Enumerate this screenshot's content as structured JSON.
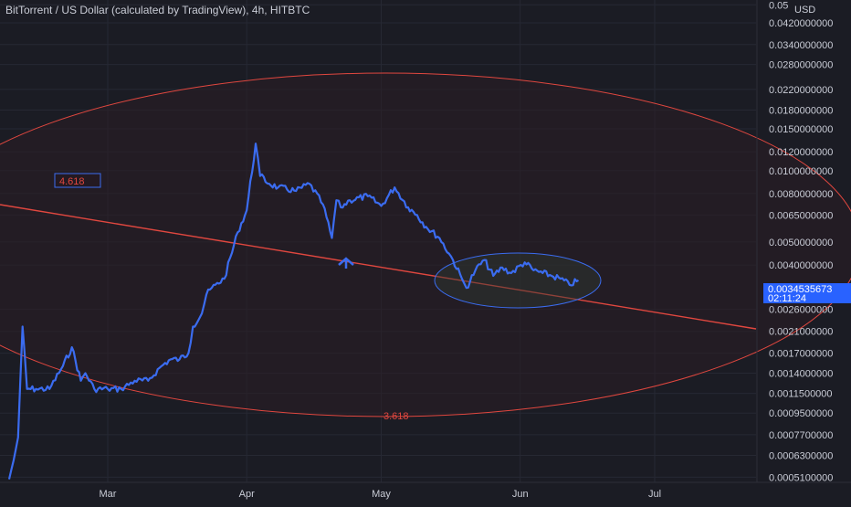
{
  "header": {
    "symbol_title": "BitTorrent / US Dollar (calculated by TradingView), 4h, HITBTC"
  },
  "axis": {
    "currency": "USD"
  },
  "annotations": {
    "fib_level_upper": "4.618",
    "fib_level_lower": "3.618",
    "arrow_icon": "up-arrow-icon"
  },
  "last_price": {
    "value": "0.0034535673",
    "countdown": "02:11:24",
    "color": "#2962ff"
  },
  "colors": {
    "background": "#1b1c24",
    "price_line": "#3b6cf0",
    "fib_circle": "#e0473f",
    "fib_fill": "#2a1d24",
    "highlight_ellipse": "#3b6cf0"
  },
  "chart_data": {
    "type": "line",
    "title": "BitTorrent / US Dollar (calculated by TradingView), 4h, HITBTC",
    "xlabel": "",
    "ylabel": "",
    "y_scale": "log",
    "y_ticks": [
      0.05,
      0.042,
      0.034,
      0.028,
      0.022,
      0.018,
      0.015,
      0.012,
      0.01,
      0.008,
      0.0065,
      0.005,
      0.004,
      0.0026,
      0.0021,
      0.0017,
      0.0014,
      0.00115,
      0.00095,
      0.00077,
      0.00063,
      0.00051
    ],
    "y_tick_labels": [
      "0.05",
      "0.0420000000",
      "0.0340000000",
      "0.0280000000",
      "0.0220000000",
      "0.0180000000",
      "0.0150000000",
      "0.0120000000",
      "0.0100000000",
      "0.0080000000",
      "0.0065000000",
      "0.0050000000",
      "0.0040000000",
      "0.0026000000",
      "0.0021000000",
      "0.0017000000",
      "0.0014000000",
      "0.0011500000",
      "0.0009500000",
      "0.0007700000",
      "0.0006300000",
      "0.0005100000"
    ],
    "x_ticks": [
      "Mar",
      "Apr",
      "May",
      "Jun",
      "Jul"
    ],
    "grid": true,
    "series": [
      {
        "x": [
          "Feb 07",
          "Feb 08",
          "Feb 09",
          "Feb 10",
          "Feb 11",
          "Feb 13",
          "Feb 16",
          "Feb 19",
          "Feb 21",
          "Feb 23",
          "Feb 24",
          "Feb 26",
          "Mar 01",
          "Mar 04",
          "Mar 07",
          "Mar 10",
          "Mar 13",
          "Mar 15",
          "Mar 17",
          "Mar 19",
          "Mar 20",
          "Mar 22",
          "Mar 23",
          "Mar 25",
          "Mar 27",
          "Mar 30",
          "Apr 01",
          "Apr 03",
          "Apr 04",
          "Apr 06",
          "Apr 08",
          "Apr 12",
          "Apr 15",
          "Apr 18",
          "Apr 20",
          "Apr 21",
          "Apr 22",
          "Apr 24",
          "Apr 28",
          "May 01",
          "May 04",
          "May 07",
          "May 09",
          "May 11",
          "May 14",
          "May 17",
          "May 19",
          "May 20",
          "May 22",
          "May 24",
          "May 26",
          "May 28",
          "May 30",
          "Jun 02",
          "Jun 04",
          "Jun 06",
          "Jun 08",
          "Jun 10",
          "Jun 12",
          "Jun 14"
        ],
        "values": [
          0.0005,
          0.0006,
          0.00075,
          0.0022,
          0.0012,
          0.0012,
          0.0012,
          0.0015,
          0.0018,
          0.0013,
          0.0014,
          0.0012,
          0.0012,
          0.0012,
          0.0013,
          0.0013,
          0.0015,
          0.0016,
          0.0016,
          0.0017,
          0.0022,
          0.0025,
          0.003,
          0.0033,
          0.0035,
          0.0055,
          0.0068,
          0.013,
          0.0095,
          0.0088,
          0.0085,
          0.0082,
          0.0088,
          0.0072,
          0.0052,
          0.0075,
          0.007,
          0.0075,
          0.0078,
          0.0071,
          0.0085,
          0.007,
          0.0065,
          0.0058,
          0.0052,
          0.0042,
          0.0035,
          0.0032,
          0.0038,
          0.0042,
          0.0036,
          0.0039,
          0.0037,
          0.0041,
          0.0038,
          0.0037,
          0.0036,
          0.0035,
          0.0033,
          0.00345
        ]
      }
    ]
  }
}
